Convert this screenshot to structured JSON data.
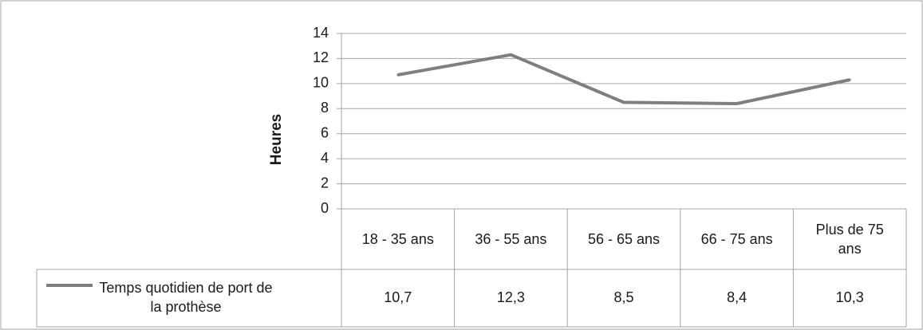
{
  "chart_data": {
    "type": "line",
    "ylabel": "Heures",
    "ylim": [
      0,
      14
    ],
    "yticks": [
      "0",
      "2",
      "4",
      "6",
      "8",
      "10",
      "12",
      "14"
    ],
    "categories": [
      [
        "18 - 35 ans"
      ],
      [
        "36 - 55 ans"
      ],
      [
        "56 - 65 ans"
      ],
      [
        "66 - 75 ans"
      ],
      [
        "Plus de 75",
        "ans"
      ]
    ],
    "series": [
      {
        "name": [
          "Temps quotidien de port de",
          "la prothèse"
        ],
        "values": [
          10.7,
          12.3,
          8.5,
          8.4,
          10.3
        ],
        "labels": [
          "10,7",
          "12,3",
          "8,5",
          "8,4",
          "10,3"
        ]
      }
    ],
    "grid": true,
    "legend_position": "data-table",
    "line_color": "#7f7f7f",
    "grid_color": "#a6a6a6"
  }
}
